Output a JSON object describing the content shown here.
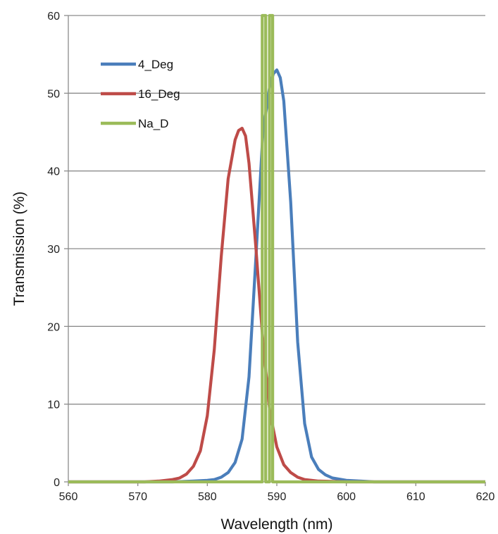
{
  "chart_data": {
    "type": "line",
    "title": "",
    "xlabel": "Wavelength (nm)",
    "ylabel": "Transmission (%)",
    "xlim": [
      560,
      620
    ],
    "ylim": [
      0,
      60
    ],
    "x_ticks": [
      560,
      570,
      580,
      590,
      600,
      610,
      620
    ],
    "y_ticks": [
      0,
      10,
      20,
      30,
      40,
      50,
      60
    ],
    "grid": "horizontal",
    "legend_position": "top-left",
    "series": [
      {
        "name": "4_Deg",
        "color": "#4a7ebb",
        "x": [
          560,
          575,
          578,
          580,
          581,
          582,
          583,
          584,
          585,
          586,
          587,
          588,
          589,
          589.5,
          590,
          590.5,
          591,
          592,
          593,
          594,
          595,
          596,
          597,
          598,
          600,
          602,
          604,
          620
        ],
        "y": [
          0,
          0,
          0.1,
          0.2,
          0.3,
          0.6,
          1.2,
          2.5,
          5.5,
          13.5,
          29,
          45,
          51,
          52.5,
          53,
          52,
          49,
          36,
          18,
          7.5,
          3.2,
          1.6,
          0.9,
          0.5,
          0.2,
          0.1,
          0,
          0
        ]
      },
      {
        "name": "16_Deg",
        "color": "#be4b48",
        "x": [
          560,
          571,
          573,
          575,
          576,
          577,
          578,
          579,
          580,
          581,
          582,
          583,
          584,
          584.5,
          585,
          585.5,
          586,
          587,
          588,
          589,
          590,
          591,
          592,
          593,
          594,
          596,
          598,
          600,
          620
        ],
        "y": [
          0,
          0,
          0.1,
          0.3,
          0.5,
          1.0,
          2.0,
          4.0,
          8.5,
          17,
          29,
          39,
          44,
          45.2,
          45.5,
          44.5,
          41,
          30,
          18,
          9,
          4.5,
          2.2,
          1.2,
          0.6,
          0.3,
          0.1,
          0.05,
          0,
          0
        ]
      },
      {
        "name": "Na_D",
        "color": "#9bbb59",
        "x": [
          560,
          587.9,
          587.9,
          588.4,
          588.4,
          588.95,
          588.95,
          589.4,
          589.4,
          620
        ],
        "y": [
          0,
          0,
          60,
          60,
          0,
          0,
          60,
          60,
          0,
          0
        ]
      }
    ]
  }
}
